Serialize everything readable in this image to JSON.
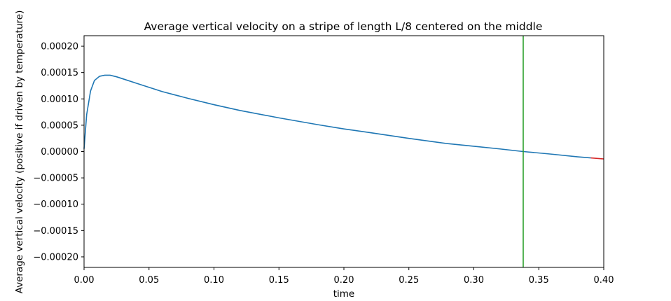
{
  "chart_data": {
    "type": "line",
    "title": "Average vertical velocity on a stripe of length L/8 centered on the middle",
    "xlabel": "time",
    "ylabel": "Average vertical velocity (positive if driven by temperature)",
    "xlim": [
      0.0,
      0.4
    ],
    "ylim": [
      -0.00022,
      0.00022
    ],
    "xticks": [
      "0.00",
      "0.05",
      "0.10",
      "0.15",
      "0.20",
      "0.25",
      "0.30",
      "0.35",
      "0.40"
    ],
    "xtick_values": [
      0.0,
      0.05,
      0.1,
      0.15,
      0.2,
      0.25,
      0.3,
      0.35,
      0.4
    ],
    "yticks": [
      "0.00020",
      "0.00015",
      "0.00010",
      "0.00005",
      "0.00000",
      "−0.00005",
      "−0.00010",
      "−0.00015",
      "−0.00020"
    ],
    "ytick_values": [
      0.0002,
      0.00015,
      0.0001,
      5e-05,
      0.0,
      -5e-05,
      -0.0001,
      -0.00015,
      -0.0002
    ],
    "grid": false,
    "series": [
      {
        "color": "#1f77b4",
        "x": [
          0.0,
          0.002,
          0.005,
          0.008,
          0.012,
          0.016,
          0.02,
          0.025,
          0.03,
          0.04,
          0.05,
          0.06,
          0.08,
          0.1,
          0.12,
          0.15,
          0.18,
          0.2,
          0.22,
          0.25,
          0.28,
          0.3,
          0.32,
          0.338,
          0.36,
          0.38,
          0.39
        ],
        "y": [
          5e-06,
          7e-05,
          0.000115,
          0.000135,
          0.000143,
          0.000145,
          0.000145,
          0.000142,
          0.000138,
          0.00013,
          0.000122,
          0.000114,
          0.000101,
          8.9e-05,
          7.8e-05,
          6.4e-05,
          5.1e-05,
          4.3e-05,
          3.6e-05,
          2.5e-05,
          1.5e-05,
          1e-05,
          5e-06,
          0.0,
          -5e-06,
          -1e-05,
          -1.2e-05
        ]
      },
      {
        "color": "#d62728",
        "x": [
          0.39,
          0.4
        ],
        "y": [
          -1.2e-05,
          -1.4e-05
        ]
      }
    ],
    "vline": {
      "x": 0.338,
      "color": "#2ca02c"
    }
  }
}
